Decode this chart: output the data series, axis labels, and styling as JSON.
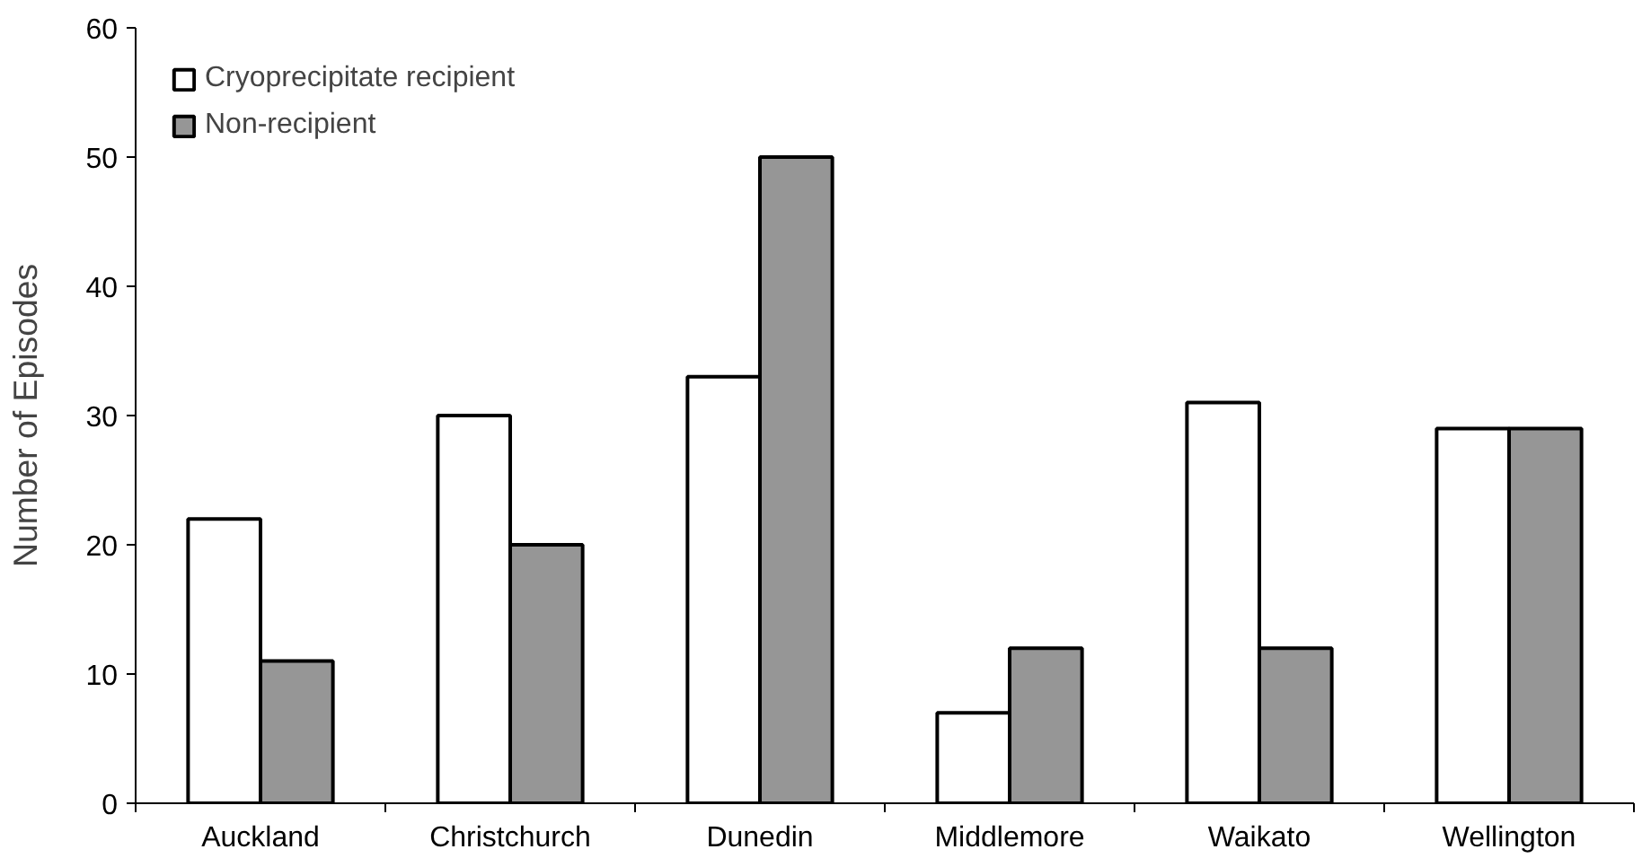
{
  "chart_data": {
    "type": "bar",
    "ylabel": "Number of Episodes",
    "categories": [
      "Auckland",
      "Christchurch",
      "Dunedin",
      "Middlemore",
      "Waikato",
      "Wellington"
    ],
    "series": [
      {
        "name": "Cryoprecipitate recipient",
        "color": "#ffffff",
        "values": [
          22,
          30,
          33,
          7,
          31,
          29
        ]
      },
      {
        "name": "Non-recipient",
        "color": "#969696",
        "values": [
          11,
          20,
          50,
          12,
          12,
          29
        ]
      }
    ],
    "ylim": [
      0,
      60
    ],
    "yticks": [
      0,
      10,
      20,
      30,
      40,
      50,
      60
    ],
    "grid": false,
    "legend": "top left"
  }
}
